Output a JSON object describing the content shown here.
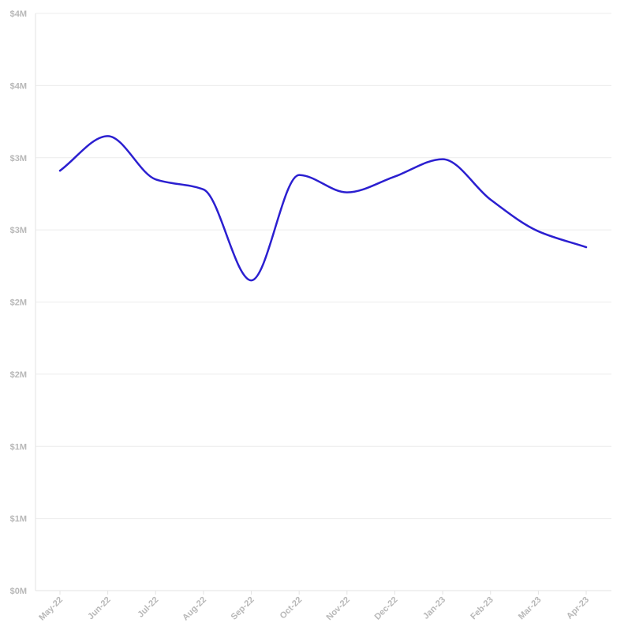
{
  "chart_data": {
    "type": "line",
    "title": "",
    "xlabel": "",
    "ylabel": "",
    "x": [
      "May-22",
      "Jun-22",
      "Jul-22",
      "Aug-22",
      "Sep-22",
      "Oct-22",
      "Nov-22",
      "Dec-22",
      "Jan-23",
      "Feb-23",
      "Mar-23",
      "Apr-23"
    ],
    "series": [
      {
        "name": "",
        "color": "#2b1fd0",
        "values": [
          2.91,
          3.15,
          2.85,
          2.78,
          2.15,
          2.88,
          2.76,
          2.87,
          2.99,
          2.71,
          2.49,
          2.38
        ]
      }
    ],
    "ylim": [
      0,
      4
    ],
    "yticks": [
      0,
      0.5,
      1,
      1.5,
      2,
      2.5,
      3,
      3.5,
      4
    ],
    "ytick_labels": [
      "$0M",
      "$1M",
      "$1M",
      "$2M",
      "$2M",
      "$3M",
      "$3M",
      "$4M",
      "$4M"
    ],
    "grid": true,
    "legend": "none"
  }
}
